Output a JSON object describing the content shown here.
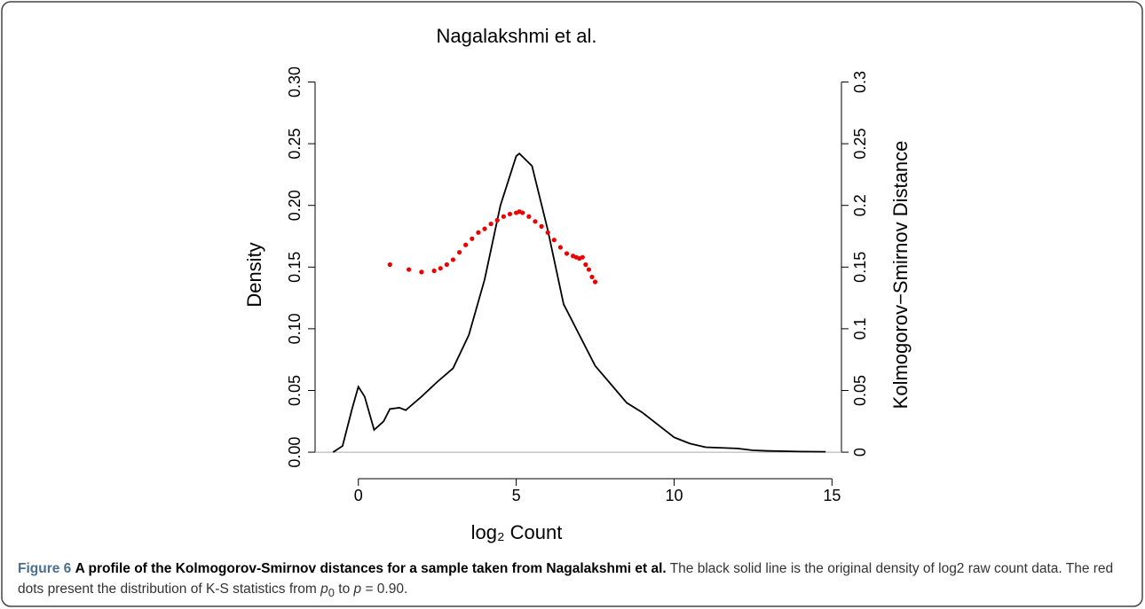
{
  "chart_data": {
    "type": "line",
    "title": "Nagalakshmi et al.",
    "x_label": "log₂ Count",
    "y_label": "Density",
    "y2_label": "Kolmogorov−Smirnov Distance",
    "xlim": [
      -1.37,
      15.3
    ],
    "xticks": [
      0,
      5,
      10,
      15
    ],
    "ylim": [
      -0.0215,
      0.309
    ],
    "yticks": [
      {
        "value": 0,
        "label": "0.00"
      },
      {
        "value": 0.05,
        "label": "0.05"
      },
      {
        "value": 0.1,
        "label": "0.10"
      },
      {
        "value": 0.15,
        "label": "0.15"
      },
      {
        "value": 0.2,
        "label": "0.20"
      },
      {
        "value": 0.25,
        "label": "0.25"
      },
      {
        "value": 0.3,
        "label": "0.30"
      }
    ],
    "y2lim": [
      -0.0215,
      0.309
    ],
    "y2ticks": [
      0,
      0.05,
      0.1,
      0.15,
      0.2,
      0.25,
      0.3
    ],
    "series": [
      {
        "color": "#000000",
        "mode": "line",
        "x": [
          -0.8,
          -0.5,
          -0.2,
          0,
          0.2,
          0.5,
          0.8,
          1.0,
          1.3,
          1.5,
          2,
          2.5,
          3,
          3.5,
          4,
          4.5,
          5,
          5.1,
          5.5,
          6,
          6.5,
          7,
          7.5,
          8,
          8.5,
          9,
          9.5,
          10,
          10.5,
          11,
          12,
          12.5,
          13,
          14,
          14.8
        ],
        "values": [
          0,
          0.005,
          0.035,
          0.053,
          0.045,
          0.018,
          0.025,
          0.035,
          0.036,
          0.034,
          0.045,
          0.057,
          0.068,
          0.095,
          0.14,
          0.2,
          0.24,
          0.242,
          0.232,
          0.18,
          0.12,
          0.095,
          0.07,
          0.055,
          0.04,
          0.032,
          0.022,
          0.012,
          0.007,
          0.004,
          0.003,
          0.0015,
          0.001,
          0.0005,
          0.0003
        ]
      },
      {
        "color": "#ee0000",
        "mode": "markers",
        "axis": "y2",
        "x": [
          1.0,
          1.6,
          2.0,
          2.4,
          2.6,
          2.8,
          3.0,
          3.2,
          3.4,
          3.6,
          3.8,
          4.0,
          4.2,
          4.4,
          4.6,
          4.8,
          5.0,
          5.1,
          5.2,
          5.4,
          5.6,
          5.8,
          6.0,
          6.2,
          6.4,
          6.6,
          6.8,
          6.9,
          7.0,
          7.1,
          7.2,
          7.3,
          7.4,
          7.5
        ],
        "values": [
          0.152,
          0.148,
          0.146,
          0.147,
          0.149,
          0.152,
          0.156,
          0.162,
          0.168,
          0.173,
          0.178,
          0.181,
          0.185,
          0.188,
          0.191,
          0.193,
          0.194,
          0.195,
          0.194,
          0.191,
          0.187,
          0.183,
          0.178,
          0.172,
          0.166,
          0.161,
          0.159,
          0.158,
          0.157,
          0.158,
          0.152,
          0.148,
          0.142,
          0.138
        ]
      }
    ]
  },
  "caption": {
    "label": "Figure 6",
    "title": "A profile of the Kolmogorov-Smirnov distances for a sample taken from Nagalakshmi et al.",
    "text_1": "The black solid line is the original density of log2 raw count data. The red dots present the distribution of K-S statistics from ",
    "p": "p",
    "sub": "0",
    "text_2": " to ",
    "p2": "p",
    "text_3": " = 0.90."
  }
}
